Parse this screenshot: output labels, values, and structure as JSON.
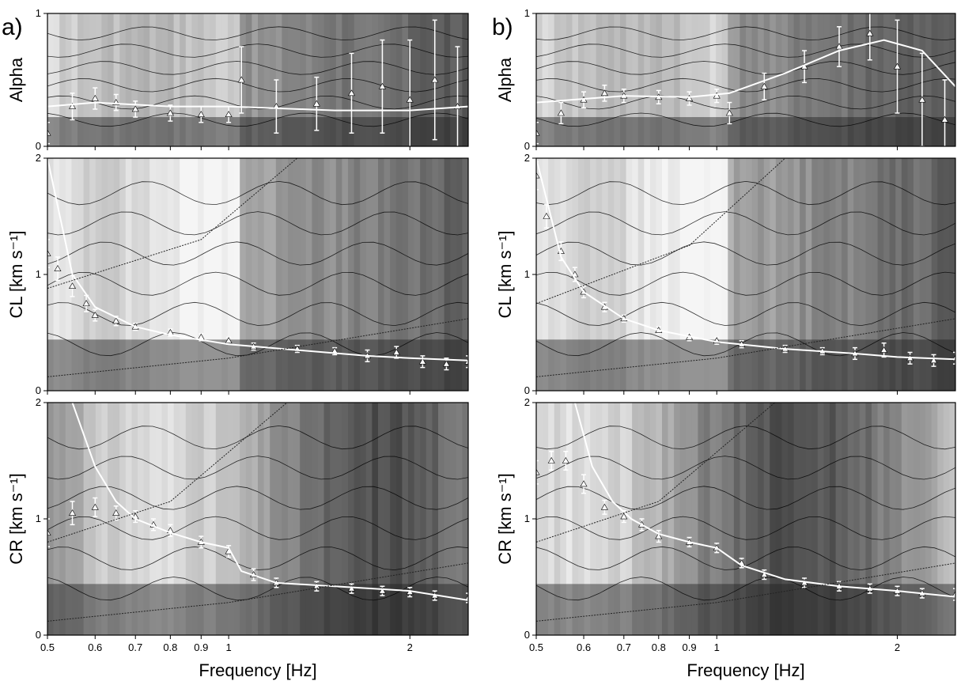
{
  "chart_data": [
    {
      "panel_label": "a)",
      "type": "heatmap",
      "xlabel": "Frequency [Hz]",
      "x_scale": "log",
      "xlim": [
        0.5,
        2.5
      ],
      "x_ticks": [
        0.5,
        0.6,
        0.7,
        0.8,
        0.9,
        1,
        2
      ],
      "x_tick_labels": [
        "0.5",
        "0.6",
        "0.7",
        "0.8",
        "0.9",
        "1",
        "2"
      ],
      "colormap": "grayscale",
      "subplots": [
        {
          "key": "alpha",
          "ylabel": "Alpha",
          "ylim": [
            0,
            1
          ],
          "y_ticks": [
            0,
            1
          ],
          "y_tick_labels": [
            "0",
            "1"
          ],
          "series": [
            {
              "role": "picks",
              "marker": "triangle",
              "x": [
                0.5,
                0.55,
                0.6,
                0.65,
                0.7,
                0.8,
                0.9,
                1.0,
                1.05,
                1.2,
                1.4,
                1.6,
                1.8,
                2.0,
                2.2,
                2.4
              ],
              "y": [
                0.1,
                0.3,
                0.36,
                0.33,
                0.28,
                0.25,
                0.24,
                0.24,
                0.5,
                0.3,
                0.32,
                0.4,
                0.45,
                0.35,
                0.5,
                0.3
              ],
              "err": [
                0.08,
                0.1,
                0.08,
                0.06,
                0.06,
                0.06,
                0.06,
                0.06,
                0.25,
                0.2,
                0.2,
                0.3,
                0.35,
                0.45,
                0.45,
                0.45
              ]
            },
            {
              "role": "fit",
              "x": [
                0.5,
                0.6,
                0.8,
                1.0,
                1.5,
                2.0,
                2.5
              ],
              "y": [
                0.3,
                0.33,
                0.3,
                0.3,
                0.27,
                0.27,
                0.3
              ]
            }
          ]
        },
        {
          "key": "cl",
          "ylabel": "CL [km s⁻¹]",
          "ylim": [
            0,
            2
          ],
          "y_ticks": [
            0,
            1,
            2
          ],
          "y_tick_labels": [
            "0",
            "1",
            "2"
          ],
          "series": [
            {
              "role": "picks",
              "marker": "triangle",
              "x": [
                0.5,
                0.52,
                0.55,
                0.58,
                0.6,
                0.65,
                0.7,
                0.8,
                0.9,
                1.0,
                1.1,
                1.3,
                1.5,
                1.7,
                1.9,
                2.1,
                2.3,
                2.5
              ],
              "y": [
                1.18,
                1.05,
                0.9,
                0.75,
                0.65,
                0.6,
                0.55,
                0.5,
                0.46,
                0.43,
                0.38,
                0.36,
                0.34,
                0.3,
                0.33,
                0.25,
                0.23,
                0.25
              ],
              "err": [
                0.12,
                0.1,
                0.09,
                0.07,
                0.05,
                0.04,
                0.03,
                0.03,
                0.03,
                0.03,
                0.03,
                0.03,
                0.03,
                0.05,
                0.05,
                0.05,
                0.05,
                0.05
              ]
            },
            {
              "role": "fit",
              "x": [
                0.5,
                0.55,
                0.6,
                0.7,
                0.8,
                1.0,
                1.3,
                1.7,
                2.0,
                2.5
              ],
              "y": [
                2.0,
                1.0,
                0.72,
                0.55,
                0.48,
                0.4,
                0.35,
                0.3,
                0.28,
                0.26
              ]
            },
            {
              "role": "reference",
              "x": [
                0.5,
                0.9,
                1.3
              ],
              "y": [
                0.88,
                1.3,
                2.0
              ]
            },
            {
              "role": "reference",
              "x": [
                0.5,
                1.0,
                2.5
              ],
              "y": [
                0.12,
                0.28,
                0.62
              ]
            }
          ]
        },
        {
          "key": "cr",
          "ylabel": "CR [km s⁻¹]",
          "ylim": [
            0,
            2
          ],
          "y_ticks": [
            0,
            1,
            2
          ],
          "y_tick_labels": [
            "0",
            "1",
            "2"
          ],
          "series": [
            {
              "role": "picks",
              "marker": "triangle",
              "x": [
                0.5,
                0.55,
                0.6,
                0.65,
                0.7,
                0.75,
                0.8,
                0.9,
                1.0,
                1.1,
                1.2,
                1.4,
                1.6,
                1.8,
                2.0,
                2.2,
                2.5
              ],
              "y": [
                0.88,
                1.05,
                1.1,
                1.05,
                1.02,
                0.95,
                0.9,
                0.8,
                0.72,
                0.52,
                0.45,
                0.42,
                0.4,
                0.38,
                0.37,
                0.34,
                0.32
              ],
              "err": [
                0.12,
                0.1,
                0.08,
                0.06,
                0.05,
                0.05,
                0.05,
                0.05,
                0.05,
                0.05,
                0.04,
                0.04,
                0.04,
                0.04,
                0.04,
                0.04,
                0.04
              ]
            },
            {
              "role": "fit",
              "x": [
                0.55,
                0.6,
                0.65,
                0.7,
                0.8,
                0.9,
                1.0,
                1.05,
                1.2,
                1.5,
                2.0,
                2.5
              ],
              "y": [
                2.0,
                1.45,
                1.15,
                1.0,
                0.88,
                0.8,
                0.75,
                0.55,
                0.45,
                0.42,
                0.38,
                0.3
              ]
            },
            {
              "role": "reference",
              "x": [
                0.5,
                0.8,
                1.25
              ],
              "y": [
                0.8,
                1.15,
                2.0
              ]
            },
            {
              "role": "reference",
              "x": [
                0.5,
                1.0,
                2.5
              ],
              "y": [
                0.12,
                0.28,
                0.62
              ]
            }
          ]
        }
      ]
    },
    {
      "panel_label": "b)",
      "type": "heatmap",
      "xlabel": "Frequency [Hz]",
      "x_scale": "log",
      "xlim": [
        0.5,
        2.5
      ],
      "x_ticks": [
        0.5,
        0.6,
        0.7,
        0.8,
        0.9,
        1,
        2
      ],
      "x_tick_labels": [
        "0.5",
        "0.6",
        "0.7",
        "0.8",
        "0.9",
        "1",
        "2"
      ],
      "colormap": "grayscale",
      "subplots": [
        {
          "key": "alpha",
          "ylabel": "Alpha",
          "ylim": [
            0,
            1
          ],
          "y_ticks": [
            0,
            1
          ],
          "y_tick_labels": [
            "0",
            "1"
          ],
          "series": [
            {
              "role": "picks",
              "marker": "triangle",
              "x": [
                0.5,
                0.55,
                0.6,
                0.65,
                0.7,
                0.8,
                0.9,
                1.0,
                1.05,
                1.2,
                1.4,
                1.6,
                1.8,
                2.0,
                2.2,
                2.4
              ],
              "y": [
                0.1,
                0.25,
                0.35,
                0.4,
                0.38,
                0.37,
                0.36,
                0.38,
                0.25,
                0.45,
                0.6,
                0.75,
                0.85,
                0.6,
                0.35,
                0.2
              ],
              "err": [
                0.08,
                0.08,
                0.06,
                0.06,
                0.05,
                0.05,
                0.05,
                0.05,
                0.08,
                0.1,
                0.12,
                0.15,
                0.2,
                0.35,
                0.35,
                0.3
              ]
            },
            {
              "role": "fit",
              "x": [
                0.5,
                0.7,
                0.9,
                1.05,
                1.3,
                1.6,
                1.9,
                2.2,
                2.5
              ],
              "y": [
                0.33,
                0.38,
                0.37,
                0.4,
                0.55,
                0.72,
                0.8,
                0.72,
                0.45
              ]
            }
          ]
        },
        {
          "key": "cl",
          "ylabel": "CL [km s⁻¹]",
          "ylim": [
            0,
            2
          ],
          "y_ticks": [
            0,
            1,
            2
          ],
          "y_tick_labels": [
            "0",
            "1",
            "2"
          ],
          "series": [
            {
              "role": "picks",
              "marker": "triangle",
              "x": [
                0.5,
                0.52,
                0.55,
                0.58,
                0.6,
                0.65,
                0.7,
                0.8,
                0.9,
                1.0,
                1.1,
                1.3,
                1.5,
                1.7,
                1.9,
                2.1,
                2.3,
                2.5
              ],
              "y": [
                1.85,
                1.5,
                1.2,
                1.0,
                0.85,
                0.72,
                0.62,
                0.52,
                0.46,
                0.43,
                0.4,
                0.36,
                0.34,
                0.32,
                0.35,
                0.28,
                0.26,
                0.28
              ],
              "err": [
                0.12,
                0.1,
                0.08,
                0.06,
                0.05,
                0.04,
                0.03,
                0.03,
                0.03,
                0.03,
                0.03,
                0.03,
                0.03,
                0.05,
                0.06,
                0.05,
                0.05,
                0.05
              ]
            },
            {
              "role": "fit",
              "x": [
                0.5,
                0.55,
                0.6,
                0.7,
                0.8,
                1.0,
                1.3,
                1.7,
                2.0,
                2.5
              ],
              "y": [
                2.0,
                1.15,
                0.85,
                0.62,
                0.52,
                0.42,
                0.36,
                0.32,
                0.29,
                0.27
              ]
            },
            {
              "role": "reference",
              "x": [
                0.5,
                0.9,
                1.3
              ],
              "y": [
                0.75,
                1.25,
                2.0
              ]
            },
            {
              "role": "reference",
              "x": [
                0.5,
                1.0,
                2.5
              ],
              "y": [
                0.12,
                0.28,
                0.62
              ]
            }
          ]
        },
        {
          "key": "cr",
          "ylabel": "CR [km s⁻¹]",
          "ylim": [
            0,
            2
          ],
          "y_ticks": [
            0,
            1,
            2
          ],
          "y_tick_labels": [
            "0",
            "1",
            "2"
          ],
          "series": [
            {
              "role": "picks",
              "marker": "triangle",
              "x": [
                0.5,
                0.53,
                0.56,
                0.6,
                0.65,
                0.7,
                0.75,
                0.8,
                0.9,
                1.0,
                1.1,
                1.2,
                1.4,
                1.6,
                1.8,
                2.0,
                2.2,
                2.5
              ],
              "y": [
                1.4,
                1.5,
                1.5,
                1.3,
                1.1,
                1.02,
                0.95,
                0.85,
                0.8,
                0.75,
                0.62,
                0.52,
                0.45,
                0.42,
                0.4,
                0.38,
                0.36,
                0.35
              ],
              "err": [
                0.1,
                0.08,
                0.08,
                0.08,
                0.06,
                0.05,
                0.05,
                0.05,
                0.04,
                0.04,
                0.04,
                0.04,
                0.04,
                0.04,
                0.04,
                0.04,
                0.04,
                0.05
              ]
            },
            {
              "role": "fit",
              "x": [
                0.58,
                0.62,
                0.67,
                0.72,
                0.8,
                0.9,
                1.0,
                1.1,
                1.3,
                1.6,
                2.0,
                2.5
              ],
              "y": [
                2.0,
                1.45,
                1.15,
                1.0,
                0.87,
                0.8,
                0.75,
                0.6,
                0.48,
                0.42,
                0.38,
                0.33
              ]
            },
            {
              "role": "reference",
              "x": [
                0.5,
                0.8,
                1.25
              ],
              "y": [
                0.8,
                1.15,
                2.0
              ]
            },
            {
              "role": "reference",
              "x": [
                0.5,
                1.0,
                2.5
              ],
              "y": [
                0.12,
                0.28,
                0.62
              ]
            }
          ]
        }
      ]
    }
  ]
}
